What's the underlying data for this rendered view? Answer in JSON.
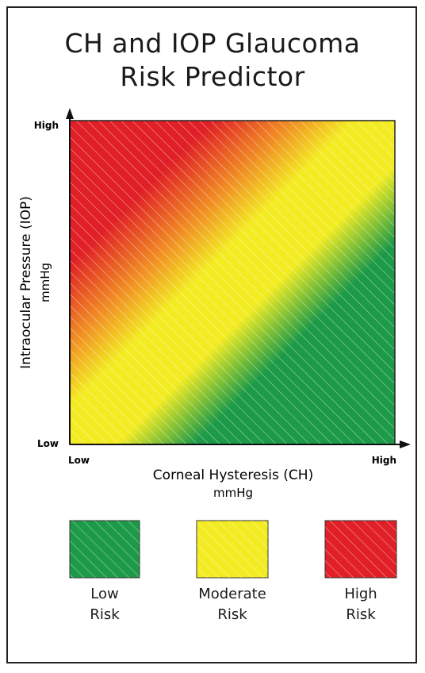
{
  "title_line1": "CH and IOP Glaucoma",
  "title_line2": "Risk Predictor",
  "chart_data": {
    "type": "heatmap",
    "title": "CH and IOP Glaucoma Risk Predictor",
    "xlabel": "Corneal Hysteresis (CH)",
    "xunit": "mmHg",
    "ylabel": "Intraocular Pressure (IOP)",
    "yunit": "mmHg",
    "x_ticks": [
      "Low",
      "High"
    ],
    "y_ticks": [
      "Low",
      "High"
    ],
    "zones": [
      {
        "name": "High Risk",
        "color": "#e01f26"
      },
      {
        "name": "Moderate Risk",
        "color": "#f3ec22"
      },
      {
        "name": "Low Risk",
        "color": "#1c9a48"
      }
    ],
    "legend": [
      {
        "line1": "Low",
        "line2": "Risk",
        "color": "#1c9a48"
      },
      {
        "line1": "Moderate",
        "line2": "Risk",
        "color": "#f3ec22"
      },
      {
        "line1": "High",
        "line2": "Risk",
        "color": "#e01f26"
      }
    ]
  }
}
